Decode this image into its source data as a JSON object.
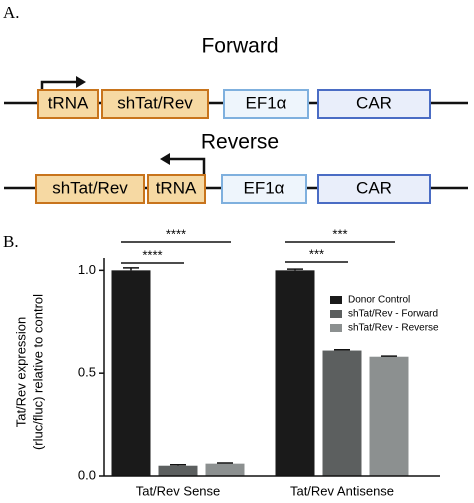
{
  "panel_a": {
    "label": "A.",
    "forward": {
      "title": "Forward",
      "boxes": [
        "tRNA",
        "shTat/Rev",
        "EF1α",
        "CAR"
      ]
    },
    "reverse": {
      "title": "Reverse",
      "boxes": [
        "shTat/Rev",
        "tRNA",
        "EF1α",
        "CAR"
      ]
    }
  },
  "panel_b_label": "B.",
  "chart_data": {
    "type": "bar",
    "ylabel": [
      "Tat/Rev expression",
      "(rluc/fluc) relative to control"
    ],
    "categories": [
      "Tat/Rev Sense",
      "Tat/Rev Antisense"
    ],
    "series": [
      {
        "name": "Donor Control",
        "color": "#1a1a1a",
        "values": [
          1.0,
          1.0
        ],
        "errors": [
          0.012,
          0.006
        ]
      },
      {
        "name": "shTat/Rev - Forward",
        "color": "#5c5f5f",
        "values": [
          0.05,
          0.61
        ],
        "errors": [
          0.005,
          0.004
        ]
      },
      {
        "name": "shTat/Rev - Reverse",
        "color": "#8c9090",
        "values": [
          0.06,
          0.58
        ],
        "errors": [
          0.003,
          0.003
        ]
      }
    ],
    "ylim": [
      0,
      1.06
    ],
    "yticks": [
      {
        "value": 0,
        "label": "0.0"
      },
      0.5,
      {
        "value": 1,
        "label": "1.0"
      }
    ],
    "annotations": [
      "****",
      "****",
      "***",
      "***"
    ],
    "legend": "upper right"
  }
}
